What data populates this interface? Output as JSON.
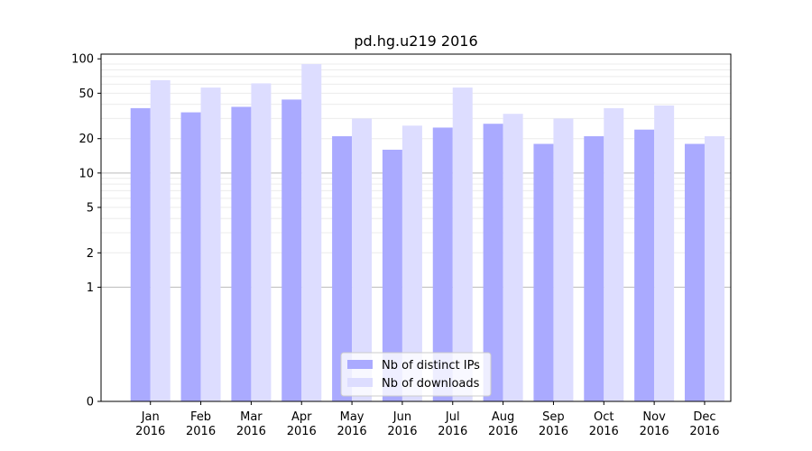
{
  "chart_data": {
    "type": "bar",
    "title": "pd.hg.u219 2016",
    "xlabel": "",
    "ylabel": "",
    "y_scale": "symlog",
    "y_ticks": [
      0,
      1,
      2,
      5,
      10,
      20,
      50,
      100
    ],
    "ylim": [
      0,
      110
    ],
    "grid": "horizontal",
    "legend_position": "bottom-center",
    "categories": [
      [
        "Jan",
        "2016"
      ],
      [
        "Feb",
        "2016"
      ],
      [
        "Mar",
        "2016"
      ],
      [
        "Apr",
        "2016"
      ],
      [
        "May",
        "2016"
      ],
      [
        "Jun",
        "2016"
      ],
      [
        "Jul",
        "2016"
      ],
      [
        "Aug",
        "2016"
      ],
      [
        "Sep",
        "2016"
      ],
      [
        "Oct",
        "2016"
      ],
      [
        "Nov",
        "2016"
      ],
      [
        "Dec",
        "2016"
      ]
    ],
    "series": [
      {
        "name": "Nb of distinct IPs",
        "color": "#aaaaff",
        "values": [
          37,
          34,
          38,
          44,
          21,
          16,
          25,
          27,
          18,
          21,
          24,
          18
        ]
      },
      {
        "name": "Nb of downloads",
        "color": "#ddddff",
        "values": [
          65,
          56,
          61,
          90,
          30,
          26,
          56,
          33,
          30,
          37,
          39,
          21
        ]
      }
    ]
  }
}
